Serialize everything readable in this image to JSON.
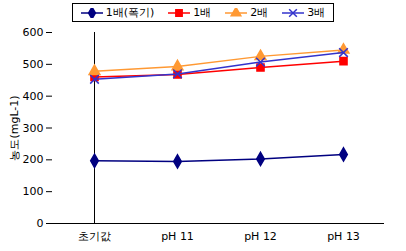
{
  "chart_data": {
    "type": "line",
    "y_label": "농도(mgL-1)",
    "categories": [
      "초기값",
      "pH 11",
      "pH 12",
      "pH 13"
    ],
    "series": [
      {
        "name": "1배(폭기)",
        "color": "#000080",
        "marker": "diamond",
        "values": [
          197,
          195,
          203,
          217
        ]
      },
      {
        "name": "1배",
        "color": "#ff0000",
        "marker": "square",
        "values": [
          460,
          468,
          490,
          510
        ]
      },
      {
        "name": "2배",
        "color": "#ff9933",
        "marker": "triangle",
        "values": [
          478,
          493,
          525,
          545
        ]
      },
      {
        "name": "3배",
        "color": "#3333cc",
        "marker": "times",
        "values": [
          453,
          470,
          507,
          537
        ]
      }
    ],
    "ylim": [
      0,
      600
    ],
    "yticks": [
      0,
      100,
      200,
      300,
      400,
      500,
      600
    ],
    "grid": false,
    "legend": "top"
  }
}
